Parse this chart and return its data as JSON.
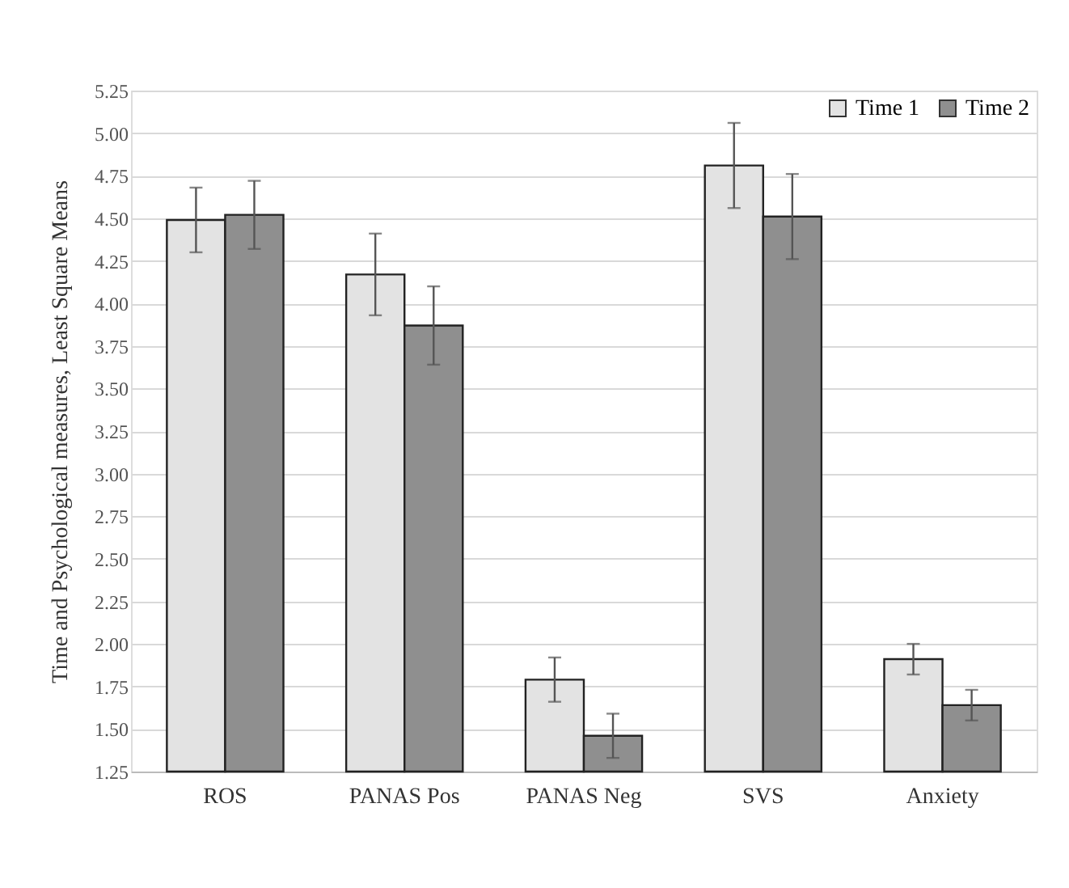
{
  "chart_data": {
    "type": "bar",
    "ylabel": "Time and Psychological measures, Least Square Means",
    "categories": [
      "ROS",
      "PANAS Pos",
      "PANAS Neg",
      "SVS",
      "Anxiety"
    ],
    "series": [
      {
        "name": "Time 1",
        "color": "#e3e3e3",
        "values": [
          4.49,
          4.17,
          1.79,
          4.81,
          1.91
        ],
        "errors": [
          0.19,
          0.24,
          0.13,
          0.25,
          0.09
        ]
      },
      {
        "name": "Time 2",
        "color": "#8f8f8f",
        "values": [
          4.52,
          3.87,
          1.46,
          4.51,
          1.64
        ],
        "errors": [
          0.2,
          0.23,
          0.13,
          0.25,
          0.09
        ]
      }
    ],
    "ylim": [
      1.25,
      5.25
    ],
    "yticks": [
      {
        "value": 1.25,
        "label": "1.25"
      },
      {
        "value": 1.5,
        "label": "1.50"
      },
      {
        "value": 1.75,
        "label": "1.75"
      },
      {
        "value": 2.0,
        "label": "2.00"
      },
      {
        "value": 2.25,
        "label": "2.25"
      },
      {
        "value": 2.5,
        "label": "2.50"
      },
      {
        "value": 2.75,
        "label": "2.75"
      },
      {
        "value": 3.0,
        "label": "3.00"
      },
      {
        "value": 3.25,
        "label": "3.25"
      },
      {
        "value": 3.5,
        "label": "3.50"
      },
      {
        "value": 3.75,
        "label": "3.75"
      },
      {
        "value": 4.0,
        "label": "4.00"
      },
      {
        "value": 4.25,
        "label": "4.25"
      },
      {
        "value": 4.5,
        "label": "4.50"
      },
      {
        "value": 4.75,
        "label": "4.75"
      },
      {
        "value": 5.0,
        "label": "5.00"
      },
      {
        "value": 5.25,
        "label": "5.25"
      }
    ],
    "grid": "y",
    "legend": "top right"
  }
}
